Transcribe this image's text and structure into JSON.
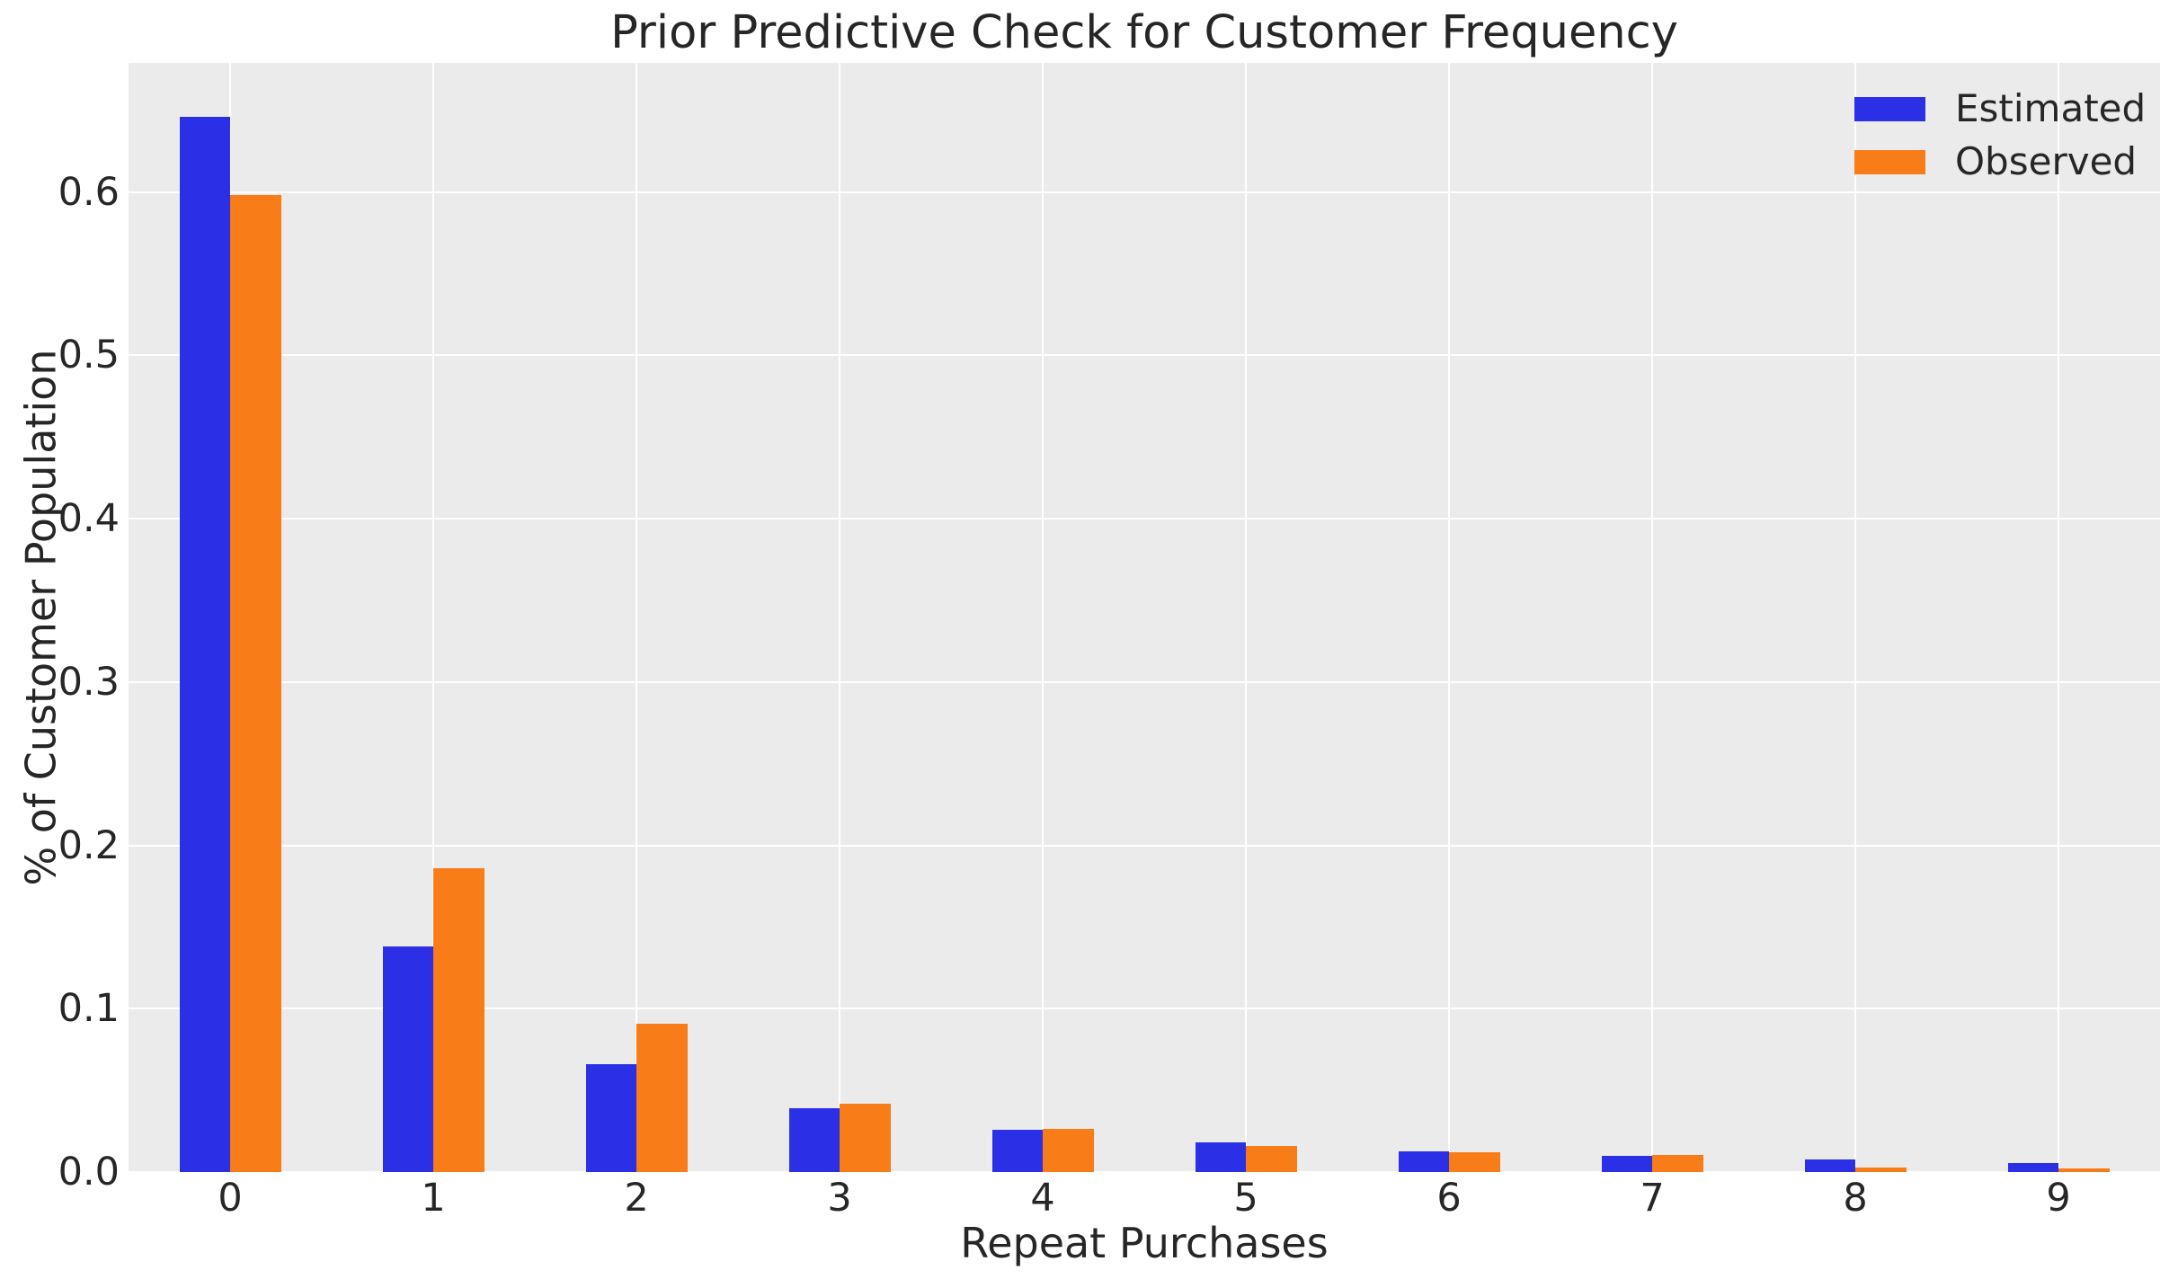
{
  "chart_data": {
    "type": "bar",
    "title": "Prior Predictive Check for Customer Frequency",
    "xlabel": "Repeat Purchases",
    "ylabel": "% of Customer Population",
    "categories": [
      "0",
      "1",
      "2",
      "3",
      "4",
      "5",
      "6",
      "7",
      "8",
      "9"
    ],
    "series": [
      {
        "name": "Estimated",
        "color": "#2b2fe5",
        "values": [
          0.646,
          0.138,
          0.066,
          0.039,
          0.026,
          0.018,
          0.0127,
          0.0099,
          0.0077,
          0.0055
        ]
      },
      {
        "name": "Observed",
        "color": "#f87c18",
        "values": [
          0.598,
          0.186,
          0.091,
          0.042,
          0.0264,
          0.016,
          0.0121,
          0.0105,
          0.0028,
          0.0022
        ]
      }
    ],
    "yticks": [
      0.0,
      0.1,
      0.2,
      0.3,
      0.4,
      0.5,
      0.6
    ],
    "ylim": [
      0,
      0.679
    ],
    "grid": true,
    "legend_position": "upper right",
    "plot_bg_color": "#ebebeb",
    "grid_color": "#ffffff",
    "text_color": "#262626"
  }
}
